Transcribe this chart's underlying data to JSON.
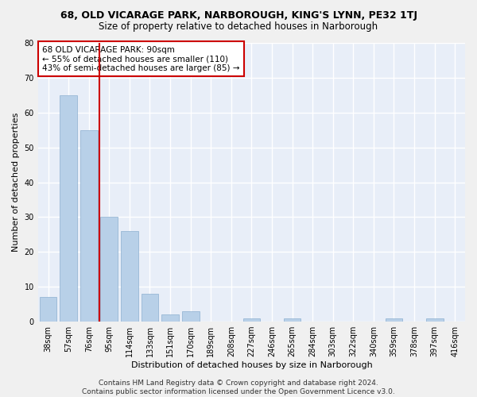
{
  "title": "68, OLD VICARAGE PARK, NARBOROUGH, KING'S LYNN, PE32 1TJ",
  "subtitle": "Size of property relative to detached houses in Narborough",
  "xlabel": "Distribution of detached houses by size in Narborough",
  "ylabel": "Number of detached properties",
  "categories": [
    "38sqm",
    "57sqm",
    "76sqm",
    "95sqm",
    "114sqm",
    "133sqm",
    "151sqm",
    "170sqm",
    "189sqm",
    "208sqm",
    "227sqm",
    "246sqm",
    "265sqm",
    "284sqm",
    "303sqm",
    "322sqm",
    "340sqm",
    "359sqm",
    "378sqm",
    "397sqm",
    "416sqm"
  ],
  "values": [
    7,
    65,
    55,
    30,
    26,
    8,
    2,
    3,
    0,
    0,
    1,
    0,
    1,
    0,
    0,
    0,
    0,
    1,
    0,
    1,
    0
  ],
  "bar_color": "#b8d0e8",
  "bar_edgecolor": "#8cb0d0",
  "vline_index": 2,
  "vline_color": "#cc0000",
  "annotation_text": "68 OLD VICARAGE PARK: 90sqm\n← 55% of detached houses are smaller (110)\n43% of semi-detached houses are larger (85) →",
  "annotation_box_edgecolor": "#cc0000",
  "annotation_box_facecolor": "#ffffff",
  "ylim": [
    0,
    80
  ],
  "yticks": [
    0,
    10,
    20,
    30,
    40,
    50,
    60,
    70,
    80
  ],
  "background_color": "#e8eef8",
  "grid_color": "#ffffff",
  "fig_facecolor": "#f0f0f0",
  "footer_line1": "Contains HM Land Registry data © Crown copyright and database right 2024.",
  "footer_line2": "Contains public sector information licensed under the Open Government Licence v3.0.",
  "title_fontsize": 9,
  "subtitle_fontsize": 8.5,
  "xlabel_fontsize": 8,
  "ylabel_fontsize": 8,
  "tick_fontsize": 7,
  "annotation_fontsize": 7.5,
  "footer_fontsize": 6.5
}
